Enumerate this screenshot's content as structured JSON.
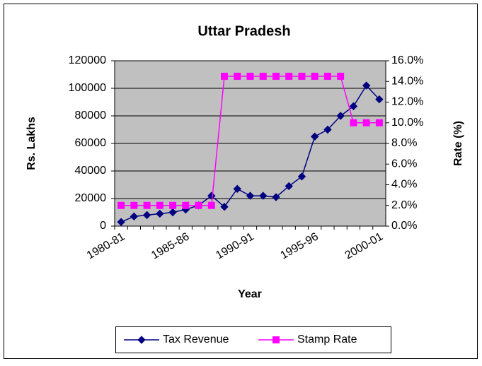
{
  "chart_data": {
    "type": "line",
    "title": "Uttar Pradesh",
    "x_label": "Year",
    "y_label": "Rs.  Lakhs",
    "y2_label": "Rate (%)",
    "categories": [
      "1980-81",
      null,
      null,
      null,
      null,
      "1985-86",
      null,
      null,
      null,
      null,
      "1990-91",
      null,
      null,
      null,
      null,
      "1995-96",
      null,
      null,
      null,
      null,
      "2000-01"
    ],
    "series": [
      {
        "name": "Tax Revenue",
        "color": "#000080",
        "axis": "y",
        "values": [
          3000,
          7000,
          8000,
          9000,
          10000,
          12000,
          15000,
          22000,
          14000,
          27000,
          22000,
          22000,
          21000,
          29000,
          36000,
          65000,
          70000,
          80000,
          87000,
          102000,
          92000
        ]
      },
      {
        "name": "Stamp Rate",
        "color": "#ff00ff",
        "axis": "y2",
        "values": [
          2,
          2,
          2,
          2,
          2,
          2,
          2,
          2,
          14.5,
          14.5,
          14.5,
          14.5,
          14.5,
          14.5,
          14.5,
          14.5,
          14.5,
          14.5,
          10,
          10,
          10
        ]
      }
    ],
    "ylim": [
      0,
      120000
    ],
    "yticks": [
      0,
      20000,
      40000,
      60000,
      80000,
      100000,
      120000
    ],
    "y2lim": [
      0,
      16
    ],
    "y2ticks": [
      {
        "value": 0,
        "label": "0.0%"
      },
      {
        "value": 2,
        "label": "2.0%"
      },
      {
        "value": 4,
        "label": "4.0%"
      },
      {
        "value": 6,
        "label": "6.0%"
      },
      {
        "value": 8,
        "label": "8.0%"
      },
      {
        "value": 10,
        "label": "10.0%"
      },
      {
        "value": 12,
        "label": "12.0%"
      },
      {
        "value": 14,
        "label": "14.0%"
      },
      {
        "value": 16,
        "label": "16.0%"
      }
    ],
    "grid": true,
    "legend": "bottom"
  }
}
